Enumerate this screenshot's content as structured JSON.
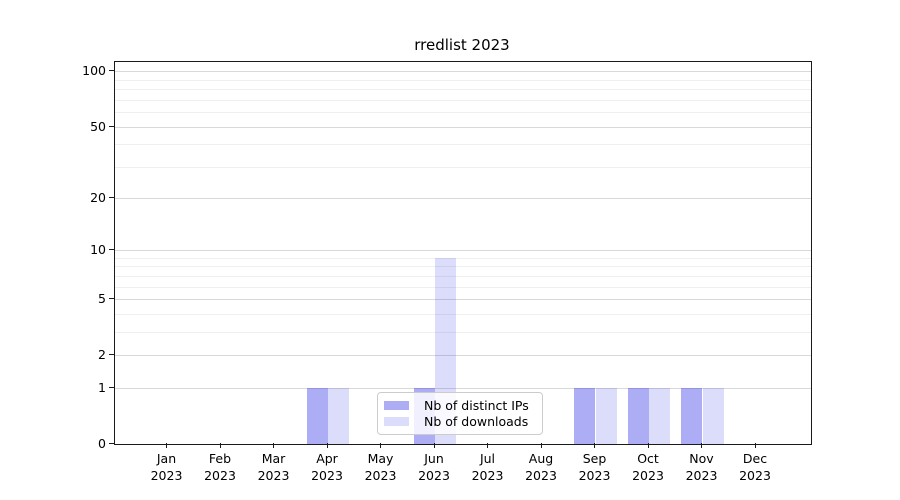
{
  "chart_data": {
    "type": "bar",
    "title": "rredlist 2023",
    "categories": [
      "Jan 2023",
      "Feb 2023",
      "Mar 2023",
      "Apr 2023",
      "May 2023",
      "Jun 2023",
      "Jul 2023",
      "Aug 2023",
      "Sep 2023",
      "Oct 2023",
      "Nov 2023",
      "Dec 2023"
    ],
    "series": [
      {
        "name": "Nb of distinct IPs",
        "color": "rgba(20,20,230,0.35)",
        "values": [
          0,
          0,
          0,
          1,
          0,
          1,
          0,
          0,
          1,
          1,
          1,
          0
        ]
      },
      {
        "name": "Nb of downloads",
        "color": "rgba(20,20,230,0.15)",
        "values": [
          0,
          0,
          0,
          1,
          0,
          9,
          0,
          0,
          1,
          1,
          1,
          0
        ]
      }
    ],
    "xlabel": "",
    "ylabel": "",
    "yscale": "log1p",
    "yticks": [
      0,
      1,
      2,
      5,
      10,
      20,
      50,
      100
    ],
    "major_grid_values": [
      1,
      2,
      5,
      10,
      20,
      50,
      100
    ],
    "minor_grid_values": [
      3,
      4,
      6,
      7,
      8,
      9,
      30,
      40,
      60,
      70,
      80,
      90
    ],
    "ylim": [
      0,
      113
    ],
    "grid": true,
    "legend_position": "lower center"
  },
  "colors": {
    "spine": "#1a1a1a",
    "major_grid": "#d9d9d9",
    "minor_grid": "#efefef",
    "background": "#ffffff"
  }
}
